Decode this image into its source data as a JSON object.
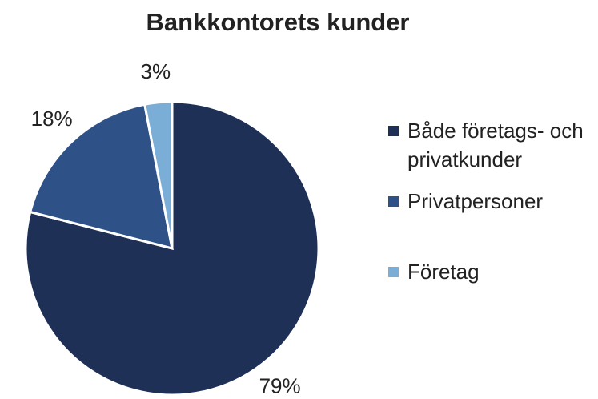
{
  "chart_data": {
    "type": "pie",
    "title": "Bankkontorets kunder",
    "categories": [
      "Både företags- och privatkunder",
      "Privatpersoner",
      "Företag"
    ],
    "values": [
      79,
      18,
      3
    ],
    "value_labels": [
      "79%",
      "18%",
      "3%"
    ],
    "colors": [
      "#1f3057",
      "#2e5288",
      "#7aaed6"
    ],
    "legend": "right"
  }
}
